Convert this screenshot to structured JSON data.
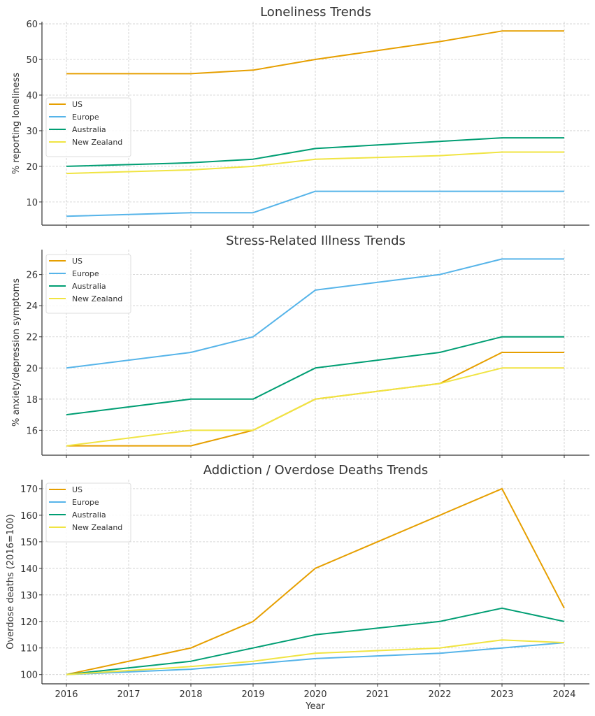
{
  "chart_data": [
    {
      "type": "line",
      "title": "Loneliness Trends",
      "xlabel": "",
      "ylabel": "% reporting loneliness",
      "x": [
        2016,
        2018,
        2019,
        2020,
        2022,
        2023,
        2024
      ],
      "xticks": [
        "2016",
        "2017",
        "2018",
        "2019",
        "2020",
        "2021",
        "2022",
        "2023",
        "2024"
      ],
      "yticks": [
        10,
        20,
        30,
        40,
        50,
        60
      ],
      "ylim": [
        3.5,
        60.6
      ],
      "grid": true,
      "legend_position": "center-left",
      "series": [
        {
          "name": "US",
          "color": "#E69F00",
          "values": [
            46,
            46,
            47,
            50,
            55,
            58,
            58
          ]
        },
        {
          "name": "Europe",
          "color": "#56B4E9",
          "values": [
            6,
            7,
            7,
            13,
            13,
            13,
            13
          ]
        },
        {
          "name": "Australia",
          "color": "#009E73",
          "values": [
            20,
            21,
            22,
            25,
            27,
            28,
            28
          ]
        },
        {
          "name": "New Zealand",
          "color": "#F0E442",
          "values": [
            18,
            19,
            20,
            22,
            23,
            24,
            24
          ]
        }
      ]
    },
    {
      "type": "line",
      "title": "Stress-Related Illness Trends",
      "xlabel": "",
      "ylabel": "% anxiety/depression symptoms",
      "x": [
        2016,
        2018,
        2019,
        2020,
        2022,
        2023,
        2024
      ],
      "xticks": [
        "2016",
        "2017",
        "2018",
        "2019",
        "2020",
        "2021",
        "2022",
        "2023",
        "2024"
      ],
      "yticks": [
        16,
        18,
        20,
        22,
        24,
        26
      ],
      "ylim": [
        14.4,
        27.6
      ],
      "grid": true,
      "legend_position": "upper-left",
      "series": [
        {
          "name": "US",
          "color": "#E69F00",
          "values": [
            15,
            15,
            16,
            18,
            19,
            21,
            21
          ]
        },
        {
          "name": "Europe",
          "color": "#56B4E9",
          "values": [
            20,
            21,
            22,
            25,
            26,
            27,
            27
          ]
        },
        {
          "name": "Australia",
          "color": "#009E73",
          "values": [
            17,
            18,
            18,
            20,
            21,
            22,
            22
          ]
        },
        {
          "name": "New Zealand",
          "color": "#F0E442",
          "values": [
            15,
            16,
            16,
            18,
            19,
            20,
            20
          ]
        }
      ]
    },
    {
      "type": "line",
      "title": "Addiction / Overdose Deaths Trends",
      "xlabel": "Year",
      "ylabel": "Overdose deaths (2016=100)",
      "x": [
        2016,
        2018,
        2019,
        2020,
        2022,
        2023,
        2024
      ],
      "xticks": [
        "2016",
        "2017",
        "2018",
        "2019",
        "2020",
        "2021",
        "2022",
        "2023",
        "2024"
      ],
      "show_xtick_labels": true,
      "yticks": [
        100,
        110,
        120,
        130,
        140,
        150,
        160,
        170
      ],
      "ylim": [
        96.5,
        173.4
      ],
      "grid": true,
      "legend_position": "upper-left",
      "series": [
        {
          "name": "US",
          "color": "#E69F00",
          "values": [
            100,
            110,
            120,
            140,
            160,
            170,
            125
          ]
        },
        {
          "name": "Europe",
          "color": "#56B4E9",
          "values": [
            100,
            102,
            104,
            106,
            108,
            110,
            112
          ]
        },
        {
          "name": "Australia",
          "color": "#009E73",
          "values": [
            100,
            105,
            110,
            115,
            120,
            125,
            120
          ]
        },
        {
          "name": "New Zealand",
          "color": "#F0E442",
          "values": [
            100,
            103,
            105,
            108,
            110,
            113,
            112
          ]
        }
      ]
    }
  ]
}
